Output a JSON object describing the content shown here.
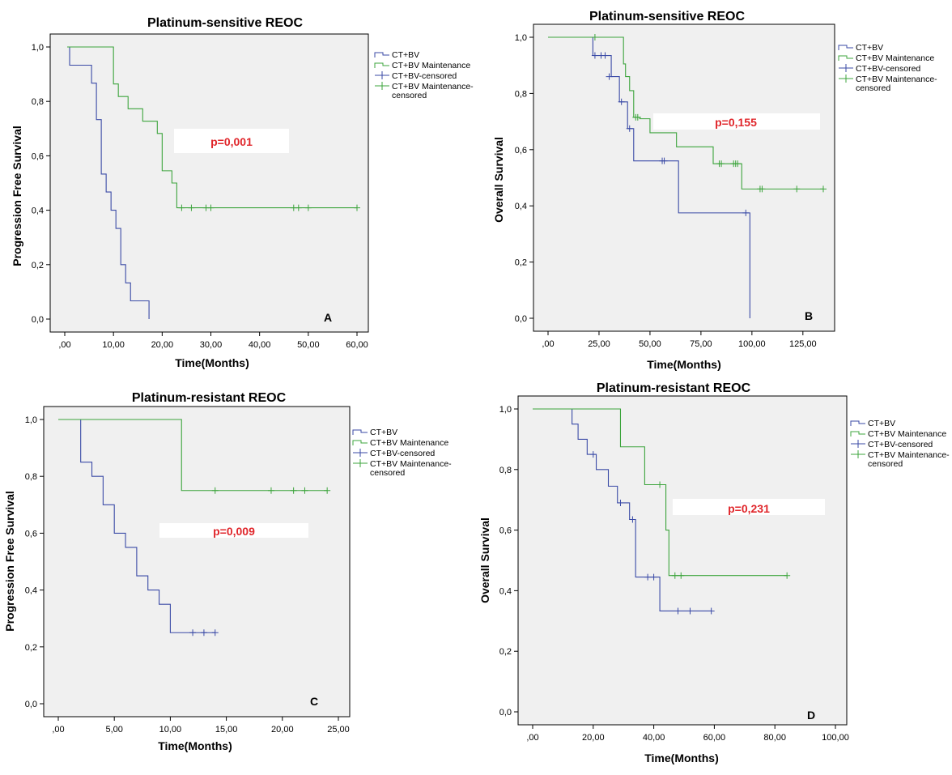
{
  "colors": {
    "ct_bv": "#3a4aa6",
    "maintenance": "#3ca43c",
    "plot_bg": "#f0f0f0",
    "pvalue": "#e0262b"
  },
  "chart_data": [
    {
      "type": "line",
      "title": "Platinum-sensitive REOC",
      "xlabel": "Time(Months)",
      "ylabel": "Progression Free Survival",
      "xlim": [
        0,
        60
      ],
      "ylim": [
        0,
        1
      ],
      "xticks": [
        0,
        10,
        20,
        30,
        40,
        50,
        60
      ],
      "xtick_labels": [
        ",00",
        "10,00",
        "20,00",
        "30,00",
        "40,00",
        "50,00",
        "60,00"
      ],
      "yticks": [
        0,
        0.2,
        0.4,
        0.6,
        0.8,
        1.0
      ],
      "ytick_labels": [
        "0,0",
        "0,2",
        "0,4",
        "0,6",
        "0,8",
        "1,0"
      ],
      "pvalue": "p=0,001",
      "panel_letter": "A",
      "legend": [
        "CT+BV",
        "CT+BV Maintenance",
        "CT+BV-censored",
        "CT+BV Maintenance-censored"
      ],
      "series": [
        {
          "name": "CT+BV",
          "step_x": [
            0.5,
            1,
            5.5,
            6.5,
            7.5,
            8.5,
            9.5,
            10.5,
            11.5,
            12.5,
            13.5,
            17.3
          ],
          "step_y": [
            1.0,
            0.933,
            0.867,
            0.733,
            0.533,
            0.467,
            0.4,
            0.333,
            0.2,
            0.133,
            0.067,
            0.0
          ],
          "censored_x": [],
          "censored_y": []
        },
        {
          "name": "CT+BV Maintenance",
          "step_x": [
            0.5,
            10,
            11,
            13,
            16,
            19,
            20,
            22,
            23,
            60
          ],
          "step_y": [
            1.0,
            0.864,
            0.818,
            0.773,
            0.727,
            0.682,
            0.545,
            0.5,
            0.409,
            0.409
          ],
          "censored_x": [
            24,
            26,
            29,
            30,
            47,
            48,
            50,
            60
          ],
          "censored_y": [
            0.409,
            0.409,
            0.409,
            0.409,
            0.409,
            0.409,
            0.409,
            0.409
          ]
        }
      ]
    },
    {
      "type": "line",
      "title": "Platinum-sensitive REOC",
      "xlabel": "Time(Months)",
      "ylabel": "Overall Survival",
      "xlim": [
        0,
        135
      ],
      "ylim": [
        0,
        1
      ],
      "xticks": [
        0,
        25,
        50,
        75,
        100,
        125
      ],
      "xtick_labels": [
        ",00",
        "25,00",
        "50,00",
        "75,00",
        "100,00",
        "125,00"
      ],
      "yticks": [
        0,
        0.2,
        0.4,
        0.6,
        0.8,
        1.0
      ],
      "ytick_labels": [
        "0,0",
        "0,2",
        "0,4",
        "0,6",
        "0,8",
        "1,0"
      ],
      "pvalue": "p=0,155",
      "panel_letter": "B",
      "legend": [
        "CT+BV",
        "CT+BV Maintenance",
        "CT+BV-censored",
        "CT+BV Maintenance-censored"
      ],
      "series": [
        {
          "name": "CT+BV",
          "step_x": [
            0,
            22,
            31,
            35,
            39,
            42,
            64,
            99,
            99
          ],
          "step_y": [
            1.0,
            0.935,
            0.86,
            0.77,
            0.675,
            0.56,
            0.375,
            0.375,
            0.0
          ],
          "censored_x": [
            23,
            26,
            28,
            30,
            36,
            40,
            56,
            57,
            97
          ],
          "censored_y": [
            0.935,
            0.935,
            0.935,
            0.86,
            0.77,
            0.675,
            0.56,
            0.56,
            0.375
          ]
        },
        {
          "name": "CT+BV Maintenance",
          "step_x": [
            0,
            37,
            38,
            40,
            42,
            45,
            50,
            63,
            81,
            95,
            135
          ],
          "step_y": [
            1.0,
            0.905,
            0.86,
            0.81,
            0.715,
            0.71,
            0.66,
            0.61,
            0.55,
            0.46,
            0.46
          ],
          "censored_x": [
            23,
            43,
            44,
            84,
            85,
            91,
            92,
            93,
            104,
            105,
            122,
            135
          ],
          "censored_y": [
            1.0,
            0.715,
            0.715,
            0.55,
            0.55,
            0.55,
            0.55,
            0.55,
            0.46,
            0.46,
            0.46,
            0.46
          ]
        }
      ]
    },
    {
      "type": "line",
      "title": "Platinum-resistant REOC",
      "xlabel": "Time(Months)",
      "ylabel": "Progression Free Survival",
      "xlim": [
        0,
        25
      ],
      "ylim": [
        0,
        1
      ],
      "xticks": [
        0,
        5,
        10,
        15,
        20,
        25
      ],
      "xtick_labels": [
        ",00",
        "5,00",
        "10,00",
        "15,00",
        "20,00",
        "25,00"
      ],
      "yticks": [
        0,
        0.2,
        0.4,
        0.6,
        0.8,
        1.0
      ],
      "ytick_labels": [
        "0,0",
        "0,2",
        "0,4",
        "0,6",
        "0,8",
        "1,0"
      ],
      "pvalue": "p=0,009",
      "panel_letter": "C",
      "legend": [
        "CT+BV",
        "CT+BV Maintenance",
        "CT+BV-censored",
        "CT+BV Maintenance-censored"
      ],
      "series": [
        {
          "name": "CT+BV",
          "step_x": [
            0,
            2,
            3,
            4,
            5,
            6,
            7,
            8,
            9,
            10,
            14
          ],
          "step_y": [
            1.0,
            0.85,
            0.8,
            0.7,
            0.6,
            0.55,
            0.45,
            0.4,
            0.35,
            0.25,
            0.25
          ],
          "censored_x": [
            12,
            13,
            14
          ],
          "censored_y": [
            0.25,
            0.25,
            0.25
          ]
        },
        {
          "name": "CT+BV Maintenance",
          "step_x": [
            0,
            11,
            24
          ],
          "step_y": [
            1.0,
            0.75,
            0.75
          ],
          "censored_x": [
            14,
            19,
            21,
            22,
            24
          ],
          "censored_y": [
            0.75,
            0.75,
            0.75,
            0.75,
            0.75
          ]
        }
      ]
    },
    {
      "type": "line",
      "title": "Platinum-resistant REOC",
      "xlabel": "Time(Months)",
      "ylabel": "Overall Survival",
      "xlim": [
        0,
        100
      ],
      "ylim": [
        0,
        1
      ],
      "xticks": [
        0,
        20,
        40,
        60,
        80,
        100
      ],
      "xtick_labels": [
        ",00",
        "20,00",
        "40,00",
        "60,00",
        "80,00",
        "100,00"
      ],
      "yticks": [
        0,
        0.2,
        0.4,
        0.6,
        0.8,
        1.0
      ],
      "ytick_labels": [
        "0,0",
        "0,2",
        "0,4",
        "0,6",
        "0,8",
        "1,0"
      ],
      "pvalue": "p=0,231",
      "panel_letter": "D",
      "legend": [
        "CT+BV",
        "CT+BV Maintenance",
        "CT+BV-censored",
        "CT+BV Maintenance-censored"
      ],
      "series": [
        {
          "name": "CT+BV",
          "step_x": [
            0,
            13,
            15,
            18,
            21,
            25,
            28,
            32,
            34,
            42,
            59
          ],
          "step_y": [
            1.0,
            0.95,
            0.9,
            0.85,
            0.8,
            0.745,
            0.69,
            0.635,
            0.445,
            0.333,
            0.333
          ],
          "censored_x": [
            20,
            29,
            33,
            38,
            40,
            48,
            52,
            59
          ],
          "censored_y": [
            0.85,
            0.69,
            0.635,
            0.445,
            0.445,
            0.333,
            0.333,
            0.333
          ]
        },
        {
          "name": "CT+BV Maintenance",
          "step_x": [
            0,
            29,
            37,
            44,
            45,
            84
          ],
          "step_y": [
            1.0,
            0.875,
            0.75,
            0.6,
            0.45,
            0.45
          ],
          "censored_x": [
            42,
            47,
            49,
            84
          ],
          "censored_y": [
            0.75,
            0.45,
            0.45,
            0.45
          ]
        }
      ]
    }
  ]
}
